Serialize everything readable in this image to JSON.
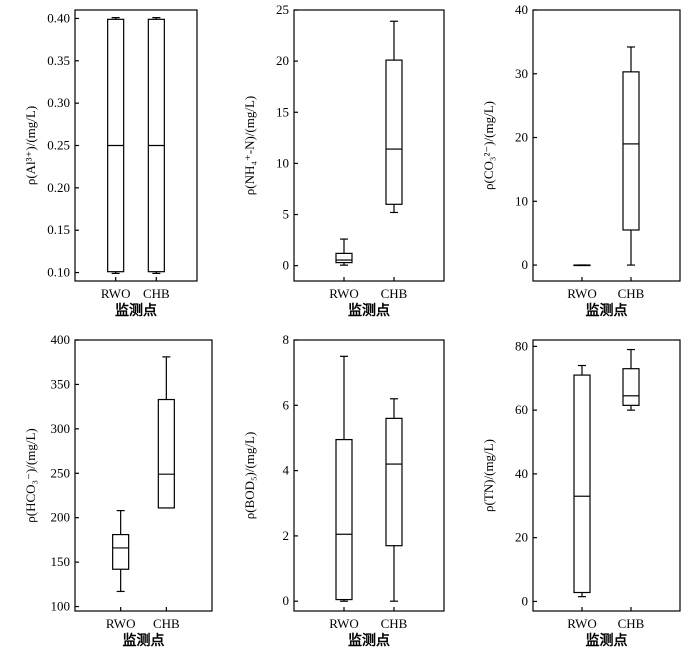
{
  "chart_data": [
    {
      "type": "box",
      "ylabel": "ρ(Al³⁺)/(mg/L)",
      "xlabel": "监测点",
      "ylim": [
        0.09,
        0.41
      ],
      "yticks": [
        "0.10",
        "0.15",
        "0.20",
        "0.25",
        "0.30",
        "0.35",
        "0.40"
      ],
      "categories": [
        "RWO",
        "CHB"
      ],
      "boxes": [
        {
          "name": "RWO",
          "min": 0.099,
          "q1": 0.101,
          "median": 0.25,
          "q3": 0.399,
          "max": 0.401
        },
        {
          "name": "CHB",
          "min": 0.099,
          "q1": 0.101,
          "median": 0.25,
          "q3": 0.399,
          "max": 0.401
        }
      ]
    },
    {
      "type": "box",
      "ylabel": "ρ(NH₄⁺-N)/(mg/L)",
      "xlabel": "监测点",
      "ylim": [
        -1.5,
        25
      ],
      "yticks": [
        "0",
        "5",
        "10",
        "15",
        "20",
        "25"
      ],
      "categories": [
        "RWO",
        "CHB"
      ],
      "boxes": [
        {
          "name": "RWO",
          "min": 0.05,
          "q1": 0.3,
          "median": 0.55,
          "q3": 1.2,
          "max": 2.6
        },
        {
          "name": "CHB",
          "min": 5.2,
          "q1": 6.0,
          "median": 11.4,
          "q3": 20.1,
          "max": 23.9
        }
      ]
    },
    {
      "type": "box",
      "ylabel": "ρ(CO₃²⁻)/(mg/L)",
      "xlabel": "监测点",
      "ylim": [
        -2.5,
        40
      ],
      "yticks": [
        "0",
        "10",
        "20",
        "30",
        "40"
      ],
      "categories": [
        "RWO",
        "CHB"
      ],
      "boxes": [
        {
          "name": "RWO",
          "min": 0,
          "q1": 0,
          "median": 0,
          "q3": 0,
          "max": 0
        },
        {
          "name": "CHB",
          "min": 0,
          "q1": 5.5,
          "median": 19,
          "q3": 30.3,
          "max": 34.2
        }
      ]
    },
    {
      "type": "box",
      "ylabel": "ρ(HCO₃⁻)/(mg/L)",
      "xlabel": "监测点",
      "ylim": [
        95,
        400
      ],
      "yticks": [
        "100",
        "150",
        "200",
        "250",
        "300",
        "350",
        "400"
      ],
      "categories": [
        "RWO",
        "CHB"
      ],
      "boxes": [
        {
          "name": "RWO",
          "min": 117,
          "q1": 142,
          "median": 166,
          "q3": 181,
          "max": 208
        },
        {
          "name": "CHB",
          "min": 211,
          "q1": 211,
          "median": 249,
          "q3": 333,
          "max": 381
        }
      ]
    },
    {
      "type": "box",
      "ylabel": "ρ(BOD₅)/(mg/L)",
      "xlabel": "监测点",
      "ylim": [
        -0.3,
        8
      ],
      "yticks": [
        "0",
        "2",
        "4",
        "6",
        "8"
      ],
      "categories": [
        "RWO",
        "CHB"
      ],
      "boxes": [
        {
          "name": "RWO",
          "min": 0,
          "q1": 0.05,
          "median": 2.05,
          "q3": 4.95,
          "max": 7.5
        },
        {
          "name": "CHB",
          "min": 0,
          "q1": 1.7,
          "median": 4.2,
          "q3": 5.6,
          "max": 6.2
        }
      ]
    },
    {
      "type": "box",
      "ylabel": "ρ(TN)/(mg/L)",
      "xlabel": "监测点",
      "ylim": [
        -3,
        82
      ],
      "yticks": [
        "0",
        "20",
        "40",
        "60",
        "80"
      ],
      "categories": [
        "RWO",
        "CHB"
      ],
      "boxes": [
        {
          "name": "RWO",
          "min": 1.5,
          "q1": 2.8,
          "median": 33,
          "q3": 71,
          "max": 74
        },
        {
          "name": "CHB",
          "min": 60,
          "q1": 61.5,
          "median": 64.5,
          "q3": 73,
          "max": 79
        }
      ]
    }
  ]
}
